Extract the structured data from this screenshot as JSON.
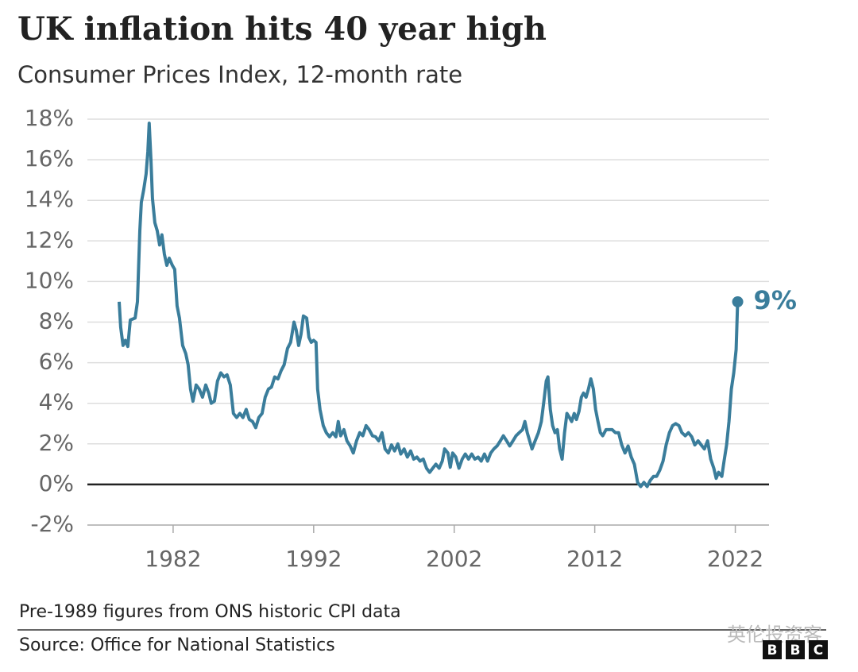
{
  "chart_data": {
    "type": "line",
    "title": "UK inflation hits 40 year high",
    "subtitle": "Consumer Prices Index, 12-month rate",
    "notes": [
      "Pre-1989 figures from ONS historic CPI data",
      "Source: Office for National Statistics"
    ],
    "brand": [
      "B",
      "B",
      "C"
    ],
    "watermark": "英伦投资客",
    "x": [
      1978.16,
      1978.27,
      1978.44,
      1978.6,
      1978.78,
      1978.95,
      1979.3,
      1979.46,
      1979.63,
      1979.74,
      1979.9,
      1980.08,
      1980.2,
      1980.3,
      1980.42,
      1980.53,
      1980.7,
      1980.87,
      1981.04,
      1981.2,
      1981.38,
      1981.55,
      1981.72,
      1981.94,
      1982.11,
      1982.28,
      1982.45,
      1982.68,
      1982.9,
      1983.07,
      1983.24,
      1983.41,
      1983.64,
      1983.86,
      1984.09,
      1984.32,
      1984.54,
      1984.71,
      1984.94,
      1985.16,
      1985.39,
      1985.62,
      1985.84,
      1986.07,
      1986.29,
      1986.52,
      1986.75,
      1986.97,
      1987.2,
      1987.42,
      1987.65,
      1987.88,
      1988.1,
      1988.33,
      1988.55,
      1988.78,
      1989.0,
      1989.23,
      1989.46,
      1989.68,
      1989.9,
      1990.14,
      1990.36,
      1990.6,
      1990.76,
      1990.93,
      1991.1,
      1991.27,
      1991.5,
      1991.66,
      1991.83,
      1992.0,
      1992.17,
      1992.28,
      1992.45,
      1992.68,
      1992.9,
      1993.13,
      1993.36,
      1993.58,
      1993.75,
      1993.92,
      1994.15,
      1994.37,
      1994.6,
      1994.82,
      1995.05,
      1995.28,
      1995.5,
      1995.73,
      1995.95,
      1996.18,
      1996.4,
      1996.63,
      1996.86,
      1997.08,
      1997.31,
      1997.54,
      1997.76,
      1997.99,
      1998.2,
      1998.44,
      1998.67,
      1998.9,
      1999.12,
      1999.35,
      1999.57,
      1999.8,
      2000.03,
      2000.25,
      2000.47,
      2000.7,
      2000.93,
      2001.15,
      2001.32,
      2001.55,
      2001.72,
      2001.89,
      2002.11,
      2002.34,
      2002.57,
      2002.79,
      2003.02,
      2003.25,
      2003.47,
      2003.7,
      2003.92,
      2004.15,
      2004.37,
      2004.6,
      2004.82,
      2005.05,
      2005.28,
      2005.5,
      2005.73,
      2005.95,
      2006.18,
      2006.4,
      2006.63,
      2006.86,
      2007.03,
      2007.2,
      2007.37,
      2007.54,
      2007.76,
      2007.99,
      2008.2,
      2008.38,
      2008.55,
      2008.67,
      2008.84,
      2009.0,
      2009.17,
      2009.34,
      2009.5,
      2009.68,
      2009.85,
      2010.02,
      2010.2,
      2010.36,
      2010.54,
      2010.7,
      2010.88,
      2011.05,
      2011.2,
      2011.38,
      2011.55,
      2011.72,
      2011.9,
      2012.06,
      2012.23,
      2012.4,
      2012.57,
      2012.8,
      2013.02,
      2013.24,
      2013.47,
      2013.7,
      2013.92,
      2014.15,
      2014.37,
      2014.6,
      2014.82,
      2015.05,
      2015.27,
      2015.5,
      2015.73,
      2015.95,
      2016.18,
      2016.4,
      2016.63,
      2016.86,
      2017.08,
      2017.31,
      2017.54,
      2017.76,
      2017.99,
      2018.2,
      2018.44,
      2018.67,
      2018.9,
      2019.12,
      2019.35,
      2019.57,
      2019.8,
      2020.03,
      2020.25,
      2020.47,
      2020.64,
      2020.81,
      2021.04,
      2021.2,
      2021.38,
      2021.55,
      2021.72,
      2021.89,
      2022.06,
      2022.17
    ],
    "series": [
      {
        "name": "CPI 12-month rate",
        "color": "#3a7d9b",
        "values": [
          9.0,
          7.75,
          6.85,
          7.1,
          6.8,
          8.1,
          8.2,
          9.0,
          12.5,
          13.9,
          14.5,
          15.3,
          16.4,
          17.8,
          16.0,
          14.1,
          12.9,
          12.5,
          11.8,
          12.3,
          11.35,
          10.8,
          11.15,
          10.8,
          10.6,
          8.8,
          8.2,
          6.85,
          6.45,
          5.9,
          4.7,
          4.1,
          4.9,
          4.7,
          4.3,
          4.9,
          4.5,
          4.0,
          4.1,
          5.1,
          5.5,
          5.3,
          5.4,
          4.9,
          3.5,
          3.3,
          3.5,
          3.3,
          3.7,
          3.2,
          3.1,
          2.8,
          3.3,
          3.5,
          4.3,
          4.7,
          4.8,
          5.3,
          5.2,
          5.6,
          5.9,
          6.7,
          7.0,
          8.0,
          7.6,
          6.85,
          7.4,
          8.3,
          8.2,
          7.25,
          7.0,
          7.1,
          7.0,
          4.7,
          3.7,
          2.9,
          2.55,
          2.35,
          2.55,
          2.35,
          3.1,
          2.4,
          2.7,
          2.15,
          1.9,
          1.55,
          2.15,
          2.55,
          2.4,
          2.9,
          2.7,
          2.4,
          2.35,
          2.15,
          2.55,
          1.75,
          1.55,
          1.95,
          1.65,
          2.0,
          1.5,
          1.75,
          1.35,
          1.65,
          1.25,
          1.35,
          1.15,
          1.25,
          0.8,
          0.6,
          0.8,
          1.0,
          0.8,
          1.15,
          1.75,
          1.55,
          0.85,
          1.55,
          1.35,
          0.8,
          1.25,
          1.5,
          1.25,
          1.5,
          1.25,
          1.35,
          1.15,
          1.5,
          1.15,
          1.55,
          1.75,
          1.9,
          2.15,
          2.4,
          2.15,
          1.9,
          2.15,
          2.4,
          2.55,
          2.7,
          3.1,
          2.55,
          2.15,
          1.75,
          2.15,
          2.55,
          3.1,
          4.1,
          5.1,
          5.3,
          3.7,
          2.9,
          2.55,
          2.7,
          1.75,
          1.25,
          2.55,
          3.5,
          3.3,
          3.1,
          3.5,
          3.2,
          3.6,
          4.3,
          4.5,
          4.3,
          4.7,
          5.2,
          4.7,
          3.7,
          3.1,
          2.55,
          2.4,
          2.7,
          2.7,
          2.7,
          2.55,
          2.55,
          1.95,
          1.55,
          1.9,
          1.35,
          1.0,
          0.1,
          -0.1,
          0.1,
          -0.1,
          0.2,
          0.4,
          0.4,
          0.7,
          1.15,
          1.95,
          2.55,
          2.9,
          3.0,
          2.9,
          2.55,
          2.4,
          2.55,
          2.35,
          1.95,
          2.15,
          1.95,
          1.75,
          2.15,
          1.25,
          0.8,
          0.3,
          0.6,
          0.4,
          1.15,
          1.95,
          3.1,
          4.7,
          5.5,
          6.65,
          9.0
        ]
      }
    ],
    "annotations": [
      {
        "text": "9%",
        "x": 2022.17,
        "y": 9.0
      }
    ],
    "xlim": [
      1975.9,
      2024.4
    ],
    "xticks": [
      1982,
      1992,
      2002,
      2012,
      2022
    ],
    "ylim": [
      -2,
      18
    ],
    "yticks": [
      {
        "value": -2,
        "label": "-2%"
      },
      {
        "value": 0,
        "label": "0%"
      },
      {
        "value": 2,
        "label": "2%"
      },
      {
        "value": 4,
        "label": "4%"
      },
      {
        "value": 6,
        "label": "6%"
      },
      {
        "value": 8,
        "label": "8%"
      },
      {
        "value": 10,
        "label": "10%"
      },
      {
        "value": 12,
        "label": "12%"
      },
      {
        "value": 14,
        "label": "14%"
      },
      {
        "value": 16,
        "label": "16%"
      },
      {
        "value": 18,
        "label": "18%"
      }
    ],
    "grid": true
  }
}
